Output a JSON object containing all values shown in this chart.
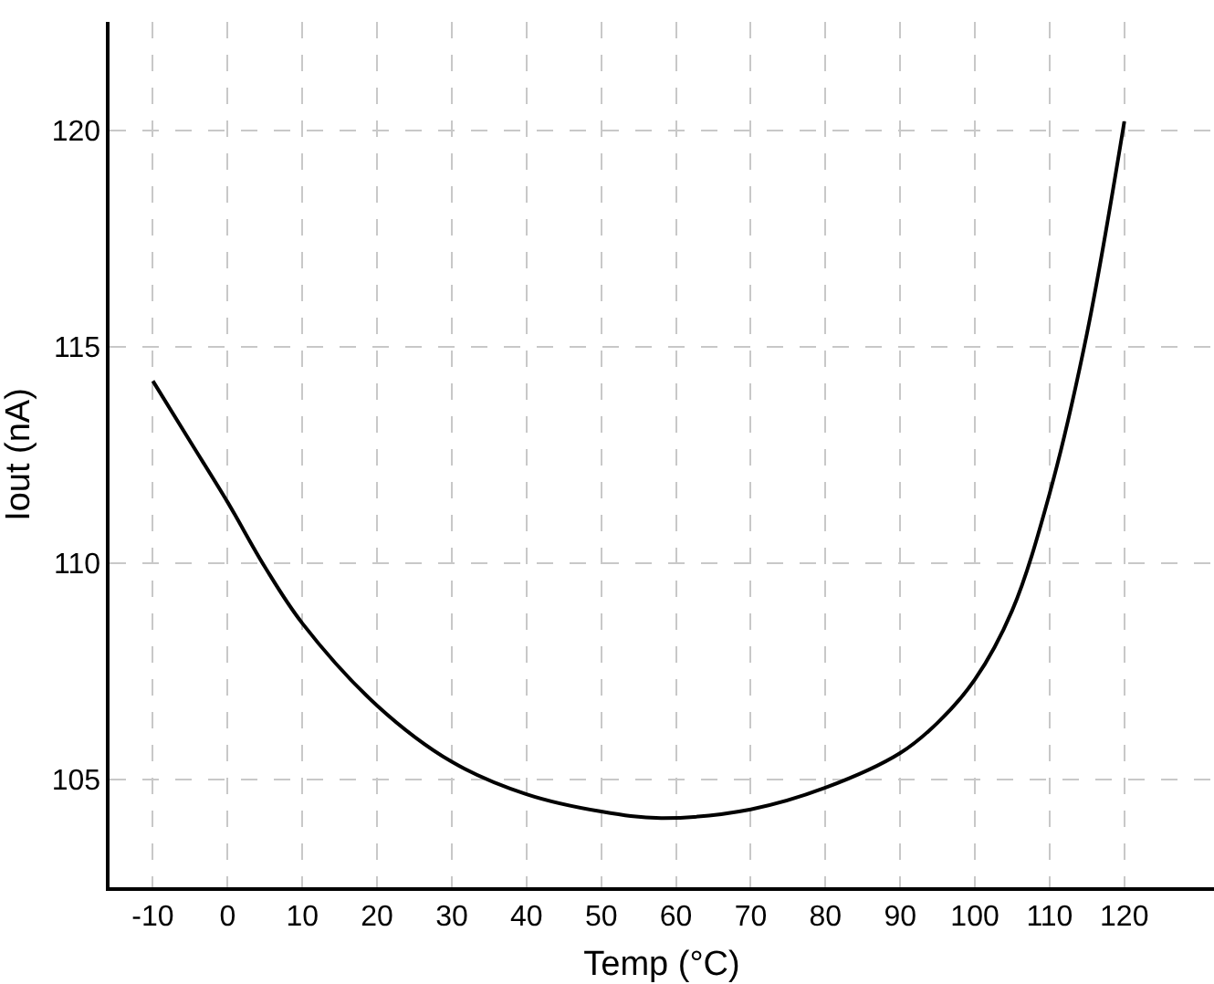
{
  "chart_data": {
    "type": "line",
    "xlabel": "Temp (°C)",
    "ylabel": "Iout (nA)",
    "x": [
      -10,
      -5,
      0,
      5,
      10,
      20,
      30,
      40,
      50,
      58,
      70,
      80,
      90,
      95,
      100,
      105,
      110,
      115,
      120
    ],
    "series": [
      {
        "color": "#000000",
        "values": [
          114.2,
          112.8,
          111.4,
          109.9,
          108.6,
          106.7,
          105.4,
          104.65,
          104.25,
          104.1,
          104.3,
          104.8,
          105.6,
          106.3,
          107.3,
          108.9,
          111.6,
          115.3,
          120.2
        ]
      }
    ],
    "xlim": [
      -15.8,
      132
    ],
    "xticks": [
      -10,
      0,
      10,
      20,
      30,
      40,
      50,
      60,
      70,
      80,
      90,
      100,
      110,
      120
    ],
    "ylim": [
      102.5,
      122.5
    ],
    "yticks": [
      105,
      110,
      115,
      120
    ],
    "grid": true,
    "legend": false,
    "marker": "none",
    "line_style": "solid"
  }
}
